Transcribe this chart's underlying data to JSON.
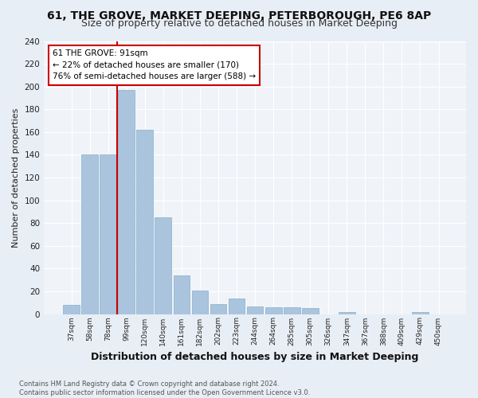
{
  "title": "61, THE GROVE, MARKET DEEPING, PETERBOROUGH, PE6 8AP",
  "subtitle": "Size of property relative to detached houses in Market Deeping",
  "xlabel": "Distribution of detached houses by size in Market Deeping",
  "ylabel": "Number of detached properties",
  "bar_labels": [
    "37sqm",
    "58sqm",
    "78sqm",
    "99sqm",
    "120sqm",
    "140sqm",
    "161sqm",
    "182sqm",
    "202sqm",
    "223sqm",
    "244sqm",
    "264sqm",
    "285sqm",
    "305sqm",
    "326sqm",
    "347sqm",
    "367sqm",
    "388sqm",
    "409sqm",
    "429sqm",
    "450sqm"
  ],
  "bar_values": [
    8,
    140,
    140,
    197,
    162,
    85,
    34,
    21,
    9,
    14,
    7,
    6,
    6,
    5,
    0,
    2,
    0,
    0,
    0,
    2,
    0
  ],
  "bar_color": "#aac4de",
  "bar_edge_color": "#8aafc8",
  "vline_color": "#cc0000",
  "annotation_text": "61 THE GROVE: 91sqm\n← 22% of detached houses are smaller (170)\n76% of semi-detached houses are larger (588) →",
  "annotation_box_color": "#cc0000",
  "footnote": "Contains HM Land Registry data © Crown copyright and database right 2024.\nContains public sector information licensed under the Open Government Licence v3.0.",
  "ylim": [
    0,
    240
  ],
  "yticks": [
    0,
    20,
    40,
    60,
    80,
    100,
    120,
    140,
    160,
    180,
    200,
    220,
    240
  ],
  "bg_color": "#e8eef5",
  "plot_bg_color": "#f0f4f9",
  "grid_color": "#ffffff",
  "title_fontsize": 10,
  "subtitle_fontsize": 9,
  "xlabel_fontsize": 9,
  "ylabel_fontsize": 8
}
